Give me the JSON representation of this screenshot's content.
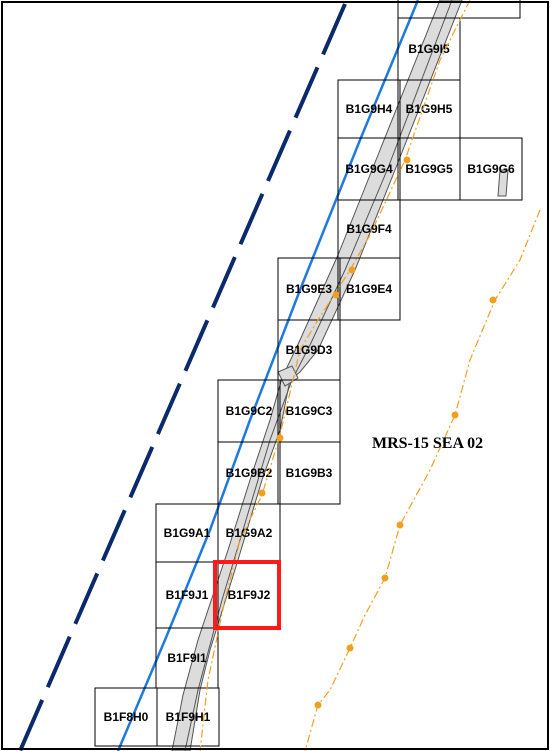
{
  "map": {
    "area_label": "MRS-15 SEA 02",
    "highlighted_cell": "B1F9J2",
    "colors": {
      "frame": "#000000",
      "grid": "#000000",
      "highlight": "#ff1a1a",
      "boundary_dash": "#0a2a6b",
      "shoreline": "#1f7ae0",
      "river_fill": "#dcdcdc",
      "track": "#f0a020"
    },
    "grid_cells": [
      {
        "label": "B1G9I5"
      },
      {
        "label": "B1G9H4"
      },
      {
        "label": "B1G9H5"
      },
      {
        "label": "B1G9G4"
      },
      {
        "label": "B1G9G5"
      },
      {
        "label": "B1G9G6"
      },
      {
        "label": "B1G9F4"
      },
      {
        "label": "B1G9E3"
      },
      {
        "label": "B1G9E4"
      },
      {
        "label": "B1G9D3"
      },
      {
        "label": "B1G9C2"
      },
      {
        "label": "B1G9C3"
      },
      {
        "label": "B1G9B2"
      },
      {
        "label": "B1G9B3"
      },
      {
        "label": "B1G9A1"
      },
      {
        "label": "B1G9A2"
      },
      {
        "label": "B1F9J1"
      },
      {
        "label": "B1F9J2"
      },
      {
        "label": "B1F9I1"
      },
      {
        "label": "B1F8H0"
      },
      {
        "label": "B1F9H1"
      }
    ]
  }
}
